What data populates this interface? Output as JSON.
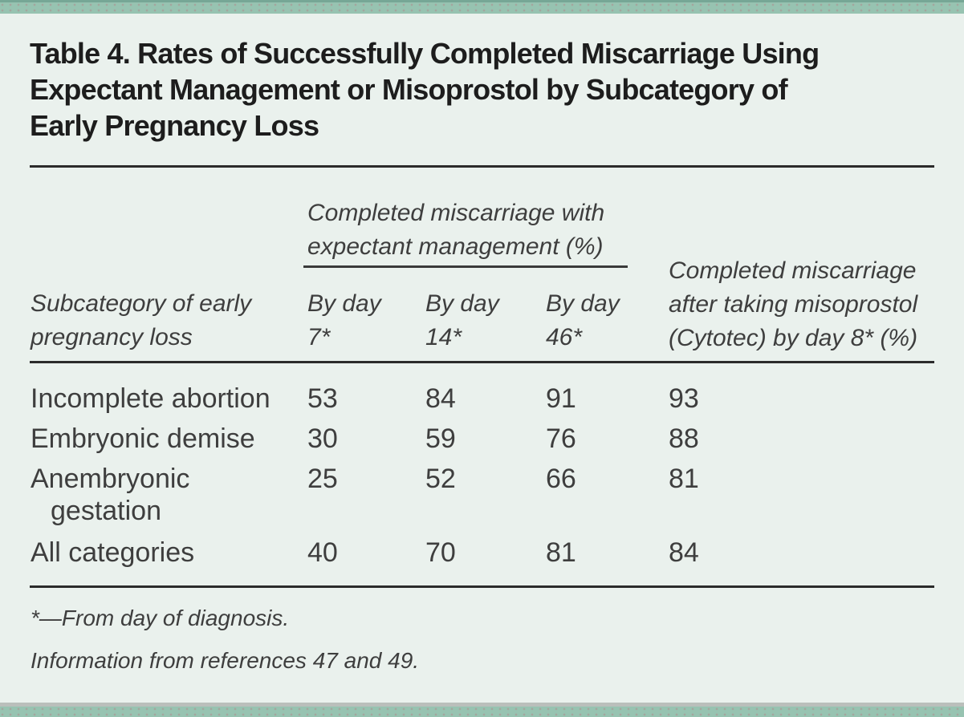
{
  "colors": {
    "band_teal": "#97c3b1",
    "band_teal_dark": "#76a796",
    "background": "#eaf1ed",
    "gray_strip": "#babfbb",
    "rule": "#2b2b2b",
    "title_text": "#1d1d1d",
    "body_text": "#3e3e3e"
  },
  "display": {
    "title_lines": [
      "Table 4. Rates of Successfully Completed Miscarriage Using",
      "Expectant Management or Misoprostol by Subcategory of",
      "Early Pregnancy Loss"
    ],
    "group_header_lines": [
      "Completed miscarriage with",
      "expectant management (%)"
    ],
    "row_header_lines": [
      "Subcategory of early",
      "pregnancy loss"
    ],
    "col_headers": [
      [
        "By day",
        "7*"
      ],
      [
        "By day",
        "14*"
      ],
      [
        "By day",
        "46*"
      ]
    ],
    "misoprostol_header_lines": [
      "Completed miscarriage",
      "after taking misoprostol",
      "(Cytotec) by day 8* (%)"
    ],
    "rows": [
      {
        "label_lines": [
          "Incomplete abortion",
          ""
        ],
        "values": [
          "53",
          "84",
          "91",
          "93"
        ]
      },
      {
        "label_lines": [
          "Embryonic demise",
          ""
        ],
        "values": [
          "30",
          "59",
          "76",
          "88"
        ]
      },
      {
        "label_lines": [
          "Anembryonic",
          "gestation"
        ],
        "values": [
          "25",
          "52",
          "66",
          "81"
        ]
      },
      {
        "label_lines": [
          "All categories",
          ""
        ],
        "values": [
          "40",
          "70",
          "81",
          "84"
        ]
      }
    ],
    "footnotes": [
      "*—From day of diagnosis.",
      "Information from references 47 and 49."
    ]
  },
  "chart_data": {
    "type": "table",
    "title": "Table 4. Rates of Successfully Completed Miscarriage Using Expectant Management or Misoprostol by Subcategory of Early Pregnancy Loss",
    "column_group": {
      "label": "Completed miscarriage with expectant management (%)",
      "applies_to": [
        "By day 7*",
        "By day 14*",
        "By day 46*"
      ]
    },
    "columns": [
      "Subcategory of early pregnancy loss",
      "By day 7*",
      "By day 14*",
      "By day 46*",
      "Completed miscarriage after taking misoprostol (Cytotec) by day 8* (%)"
    ],
    "rows": [
      [
        "Incomplete abortion",
        53,
        84,
        91,
        93
      ],
      [
        "Embryonic demise",
        30,
        59,
        76,
        88
      ],
      [
        "Anembryonic gestation",
        25,
        52,
        66,
        81
      ],
      [
        "All categories",
        40,
        70,
        81,
        84
      ]
    ],
    "footnotes": [
      "*—From day of diagnosis.",
      "Information from references 47 and 49."
    ]
  }
}
